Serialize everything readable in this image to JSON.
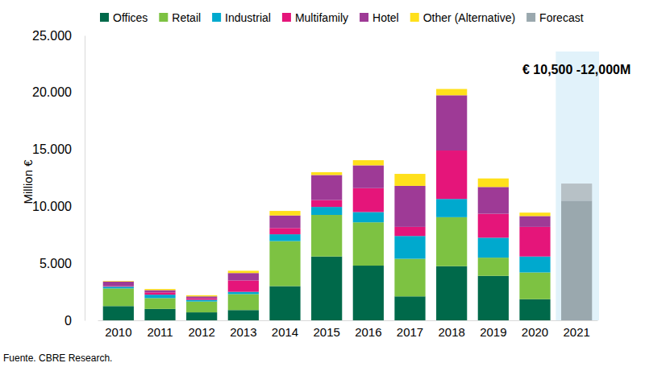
{
  "chart_data": {
    "type": "bar",
    "stacked": true,
    "legend": "top",
    "y_label": "Million €",
    "source": "Fuente. CBRE Research.",
    "annotation": "€ 10,500 -12,000M",
    "categories": [
      "2010",
      "2011",
      "2012",
      "2013",
      "2014",
      "2015",
      "2016",
      "2017",
      "2018",
      "2019",
      "2020",
      "2021"
    ],
    "ylim": [
      0,
      25000
    ],
    "yticks": [
      0,
      {
        "value": 5000,
        "label": "5.000"
      },
      {
        "value": 10000,
        "label": "10.000"
      },
      {
        "value": 15000,
        "label": "15.000"
      },
      {
        "value": 20000,
        "label": "20.000"
      },
      {
        "value": 25000,
        "label": "25.000"
      }
    ],
    "series": [
      {
        "name": "Offices",
        "color": "#00694a",
        "values": [
          1250,
          1000,
          700,
          900,
          3000,
          5600,
          4800,
          2100,
          4750,
          3900,
          1850,
          null
        ]
      },
      {
        "name": "Retail",
        "color": "#7dc242",
        "values": [
          1550,
          950,
          950,
          1400,
          3950,
          3650,
          3800,
          3300,
          4300,
          1600,
          2350,
          null
        ]
      },
      {
        "name": "Industrial",
        "color": "#00a9ce",
        "values": [
          150,
          300,
          150,
          200,
          600,
          700,
          900,
          2000,
          1600,
          1750,
          1400,
          null
        ]
      },
      {
        "name": "Multifamily",
        "color": "#e5157a",
        "values": [
          50,
          200,
          150,
          1000,
          550,
          600,
          2100,
          800,
          4250,
          2100,
          2600,
          null
        ]
      },
      {
        "name": "Hotel",
        "color": "#9e3a96",
        "values": [
          400,
          200,
          150,
          650,
          1100,
          2200,
          2000,
          3600,
          4850,
          2350,
          950,
          null
        ]
      },
      {
        "name": "Other (Alternative)",
        "color": "#ffe01b",
        "values": [
          50,
          100,
          100,
          200,
          400,
          250,
          450,
          1050,
          550,
          750,
          300,
          null
        ]
      },
      {
        "name": "Forecast",
        "color": "#9aa8ae",
        "values": [
          null,
          null,
          null,
          null,
          null,
          null,
          null,
          null,
          null,
          null,
          null,
          10500
        ]
      }
    ],
    "forecast_range": [
      10500,
      12000
    ]
  }
}
